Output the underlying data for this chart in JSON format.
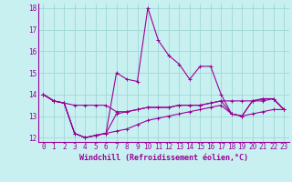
{
  "xlabel": "Windchill (Refroidissement éolien,°C)",
  "bg_color": "#c8f0f0",
  "grid_color": "#a0d8d8",
  "line_color": "#990099",
  "xlim": [
    -0.5,
    23.5
  ],
  "ylim": [
    11.8,
    18.2
  ],
  "yticks": [
    12,
    13,
    14,
    15,
    16,
    17,
    18
  ],
  "xticks": [
    0,
    1,
    2,
    3,
    4,
    5,
    6,
    7,
    8,
    9,
    10,
    11,
    12,
    13,
    14,
    15,
    16,
    17,
    18,
    19,
    20,
    21,
    22,
    23
  ],
  "series": [
    [
      14.0,
      13.7,
      13.6,
      12.2,
      12.0,
      12.1,
      12.2,
      15.0,
      14.7,
      14.6,
      18.0,
      16.5,
      15.8,
      15.4,
      14.7,
      15.3,
      15.3,
      14.0,
      13.1,
      13.0,
      13.7,
      13.8,
      13.8,
      13.3
    ],
    [
      14.0,
      13.7,
      13.6,
      13.5,
      13.5,
      13.5,
      13.5,
      13.2,
      13.2,
      13.3,
      13.4,
      13.4,
      13.4,
      13.5,
      13.5,
      13.5,
      13.6,
      13.7,
      13.7,
      13.7,
      13.7,
      13.7,
      13.8,
      13.3
    ],
    [
      14.0,
      13.7,
      13.6,
      12.2,
      12.0,
      12.1,
      12.2,
      13.1,
      13.2,
      13.3,
      13.4,
      13.4,
      13.4,
      13.5,
      13.5,
      13.5,
      13.6,
      13.7,
      13.1,
      13.0,
      13.7,
      13.8,
      13.8,
      13.3
    ],
    [
      14.0,
      13.7,
      13.6,
      12.2,
      12.0,
      12.1,
      12.2,
      12.3,
      12.4,
      12.6,
      12.8,
      12.9,
      13.0,
      13.1,
      13.2,
      13.3,
      13.4,
      13.5,
      13.1,
      13.0,
      13.1,
      13.2,
      13.3,
      13.3
    ]
  ],
  "marker": "+",
  "markersize": 3,
  "linewidth": 0.8,
  "xlabel_fontsize": 6,
  "tick_fontsize": 5.5
}
